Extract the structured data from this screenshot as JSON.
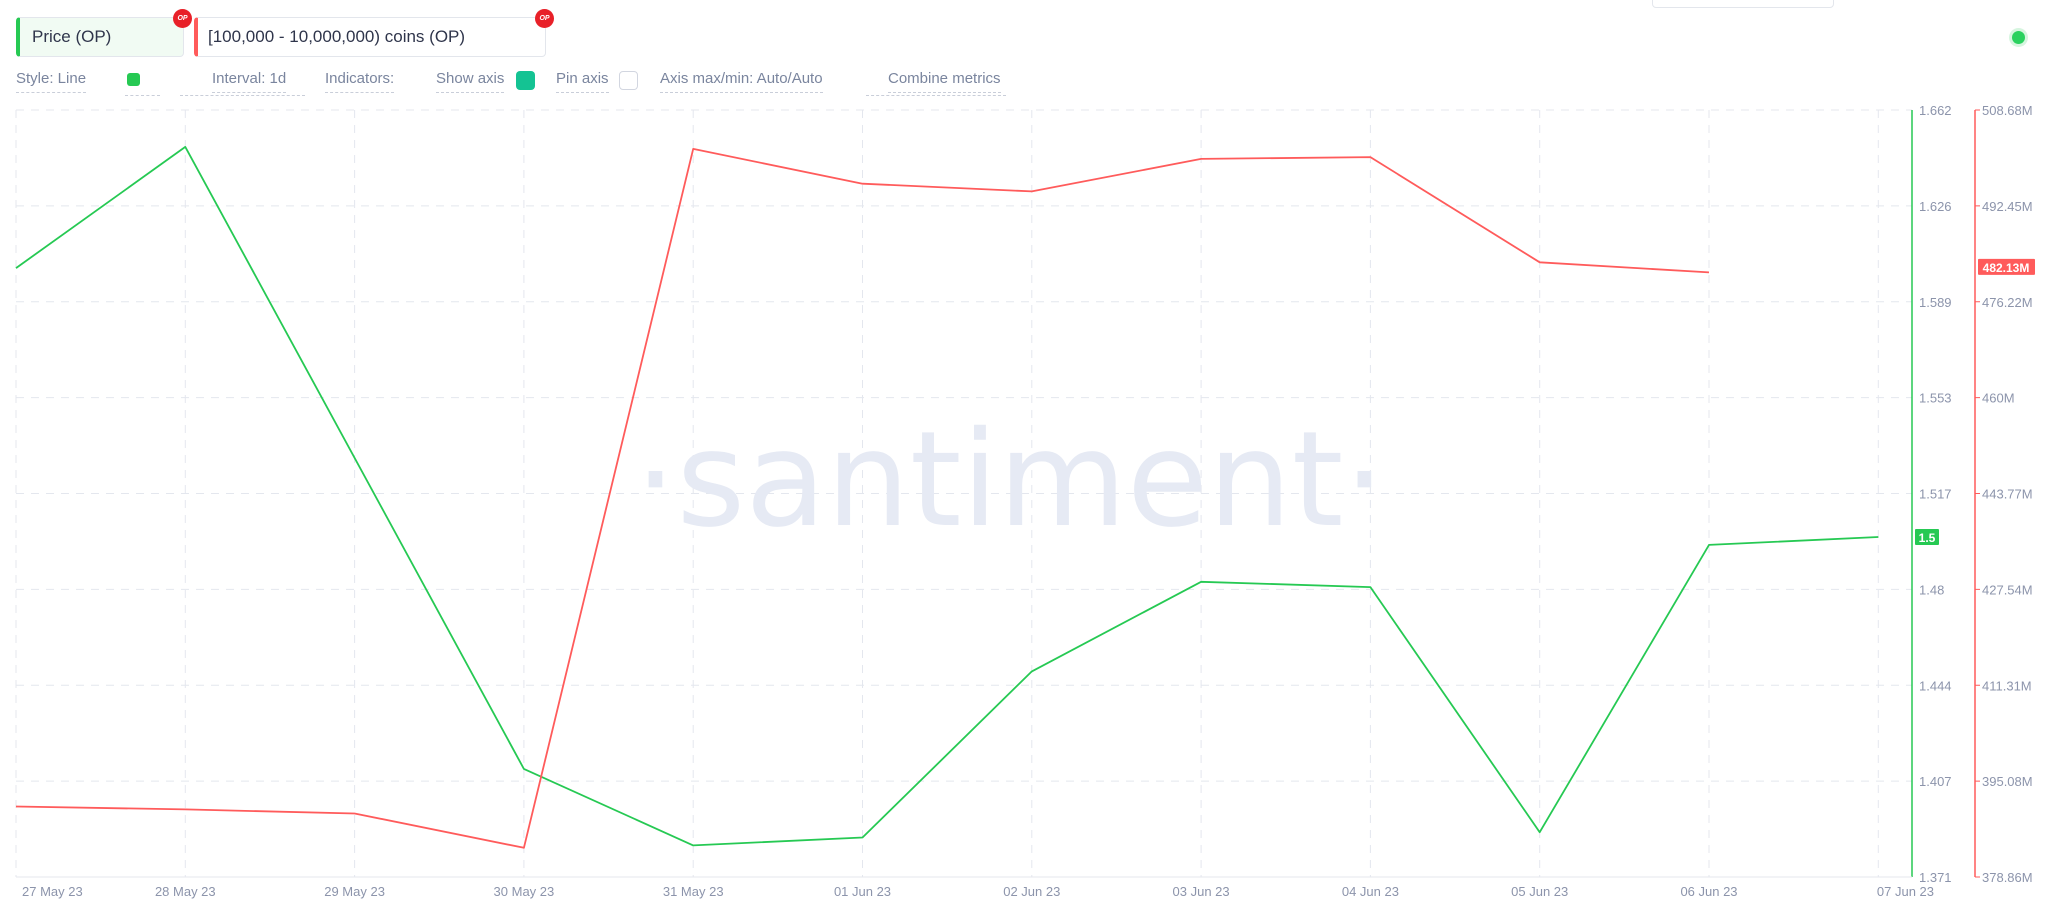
{
  "metrics": [
    {
      "label": "Price (OP)",
      "badge": "OP",
      "color": "#26c953"
    },
    {
      "label": "[100,000 - 10,000,000) coins (OP)",
      "badge": "OP",
      "color": "#ff5b5b"
    }
  ],
  "settings": {
    "style": "Style: Line",
    "interval": "Interval: 1d",
    "indicators": "Indicators:",
    "show_axis": "Show axis",
    "show_axis_checked": true,
    "pin_axis": "Pin axis",
    "pin_axis_checked": false,
    "axis_maxmin": "Axis max/min: Auto/Auto",
    "combine": "Combine metrics"
  },
  "watermark": "·santiment·",
  "chart_data": {
    "type": "line",
    "x": [
      "27 May 23",
      "28 May 23",
      "29 May 23",
      "30 May 23",
      "31 May 23",
      "01 Jun 23",
      "02 Jun 23",
      "03 Jun 23",
      "04 Jun 23",
      "05 Jun 23",
      "06 Jun 23",
      "07 Jun 23"
    ],
    "series": [
      {
        "name": "Price (OP)",
        "axis": "left",
        "color": "#26c953",
        "values": [
          1.602,
          1.648,
          null,
          1.412,
          1.383,
          1.386,
          1.449,
          1.483,
          1.481,
          1.388,
          1.497,
          1.5
        ]
      },
      {
        "name": "[100,000 - 10,000,000) coins (OP)",
        "axis": "right",
        "color": "#ff5b5b",
        "values": [
          390.8,
          390.3,
          389.6,
          383.8,
          502.1,
          496.2,
          494.9,
          500.4,
          500.7,
          482.9,
          481.2,
          null
        ]
      }
    ],
    "y_left": {
      "min": 1.371,
      "max": 1.662,
      "ticks": [
        "1.662",
        "1.626",
        "1.589",
        "1.553",
        "1.517",
        "1.48",
        "1.444",
        "1.407",
        "1.371"
      ],
      "current": "1.5",
      "current_value": 1.5
    },
    "y_right": {
      "min": 378.86,
      "max": 508.68,
      "ticks": [
        "508.68M",
        "492.45M",
        "476.22M",
        "460M",
        "443.77M",
        "427.54M",
        "411.31M",
        "395.08M",
        "378.86M"
      ],
      "current": "482.13M",
      "current_value": 482.13
    },
    "grid": true
  }
}
